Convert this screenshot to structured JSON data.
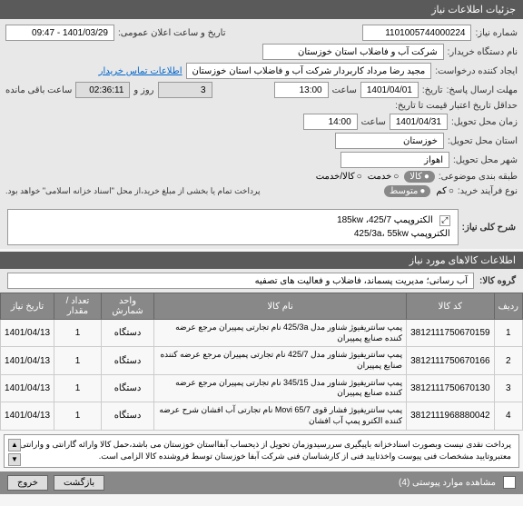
{
  "header": {
    "title": "جزئیات اطلاعات نیاز"
  },
  "form": {
    "need_no_label": "شماره نیاز:",
    "need_no": "1101005744000224",
    "public_datetime_label": "تاریخ و ساعت اعلان عمومی:",
    "public_datetime": "1401/03/29 - 09:47",
    "org_label": "نام دستگاه خریدار:",
    "org": "شرکت آب و فاضلاب استان خوزستان",
    "requester_label": "ایجاد کننده درخواست:",
    "requester": "مجید رضا مرداد کاربردار شرکت آب و فاضلاب استان خوزستان",
    "contact_link": "اطلاعات تماس خریدار",
    "deadline_label": "مهلت ارسال پاسخ:",
    "deadline_date_label": "تاریخ:",
    "deadline_date": "1401/04/01",
    "deadline_time_label": "ساعت",
    "deadline_time": "13:00",
    "days_label": "روز و",
    "days": "3",
    "remain_time": "02:36:11",
    "remain_label": "ساعت باقی مانده",
    "validity_label": "حداقل تاریخ اعتبار قیمت تا تاریخ:",
    "delivery_label": "زمان محل تحویل:",
    "delivery_date": "1401/04/31",
    "delivery_time_label": "ساعت",
    "delivery_time": "14:00",
    "province_label": "استان محل تحویل:",
    "province": "خوزستان",
    "city_label": "شهر محل تحویل:",
    "city": "اهواز",
    "category_label": "طبقه بندی موضوعی:",
    "cat_goods": "کالا",
    "cat_service": "خدمت",
    "cat_both": "کالا/خدمت",
    "process_label": "نوع فرآیند خرید:",
    "proc_low": "کم",
    "proc_med": "متوسط",
    "proc_note": "پرداخت تمام یا بخشی از مبلغ خرید،از محل \"اسناد خزانه اسلامی\" خواهد بود."
  },
  "desc": {
    "title": "شرح کلی نیاز:",
    "line1": "الکتروپمپ 425/7، 185kw",
    "line2": "الکتروپمپ 425/3a، 55kw"
  },
  "items_header": "اطلاعات کالاهای مورد نیاز",
  "group": {
    "label": "گروه کالا:",
    "value": "آب رسانی؛ مدیریت پسماند، فاضلاب و فعالیت های تصفیه"
  },
  "table": {
    "columns": [
      "ردیف",
      "کد کالا",
      "نام کالا",
      "واحد شمارش",
      "تعداد / مقدار",
      "تاریخ نیاز"
    ],
    "rows": [
      [
        "1",
        "3812111750670159",
        "پمپ سانتریفیوژ شناور مدل 425/3a نام تجارتی پمپیران مرجع عرضه کننده صنایع پمپیران",
        "دستگاه",
        "1",
        "1401/04/13"
      ],
      [
        "2",
        "3812111750670166",
        "پمپ سانتریفیوژ شناور مدل 425/7 نام تجارتی پمپیران مرجع عرضه کننده صنایع پمپیران",
        "دستگاه",
        "1",
        "1401/04/13"
      ],
      [
        "3",
        "3812111750670130",
        "پمپ سانتریفیوژ شناور مدل 345/15 نام تجارتی پمپیران مرجع عرضه کننده صنایع پمپیران",
        "دستگاه",
        "1",
        "1401/04/13"
      ],
      [
        "4",
        "3812111968880042",
        "پمپ سانتریفیوژ فشار قوی Movi 65/7 نام تجارتی آب افشان شرح عرضه کننده الکترو پمپ آب افشان",
        "دستگاه",
        "1",
        "1401/04/13"
      ]
    ]
  },
  "note": "پرداخت نقدی نیست وبصورت اسنادخزانه باپیگیری سررسیدوزمان تحویل از ذیحساب آبفااستان خوزستان می باشد،حمل کالا وارائه گارانتی و وارانتی معتبروتایید مشخصات فنی پیوست واخذتایید فنی از کارشناسان فنی شرکت آبفا خوزستان توسط فروشنده کالا الزامی است.",
  "footer": {
    "attach": "مشاهده موارد پیوستی (4)",
    "back": "بازگشت",
    "exit": "خروج"
  }
}
